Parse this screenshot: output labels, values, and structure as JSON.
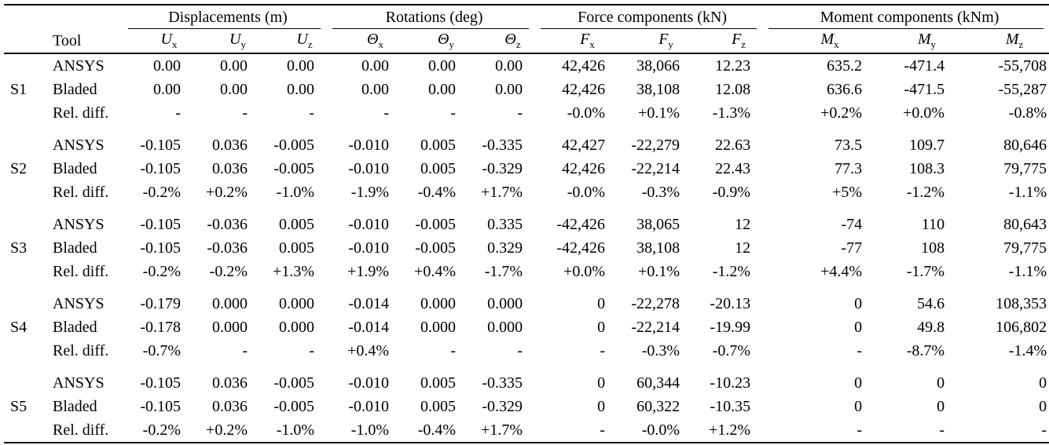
{
  "colors": {
    "background": "#ffffff",
    "text": "#000000",
    "rule": "#000000"
  },
  "table": {
    "corner_tool_label": "Tool",
    "groups": [
      {
        "label": "Displacements (m)",
        "cols": [
          {
            "sym": "U",
            "sub": "x"
          },
          {
            "sym": "U",
            "sub": "y"
          },
          {
            "sym": "U",
            "sub": "z"
          }
        ]
      },
      {
        "label": "Rotations (deg)",
        "cols": [
          {
            "sym": "Θ",
            "sub": "x"
          },
          {
            "sym": "Θ",
            "sub": "y"
          },
          {
            "sym": "Θ",
            "sub": "z"
          }
        ]
      },
      {
        "label": "Force components (kN)",
        "cols": [
          {
            "sym": "F",
            "sub": "x"
          },
          {
            "sym": "F",
            "sub": "y"
          },
          {
            "sym": "F",
            "sub": "z"
          }
        ]
      },
      {
        "label": "Moment components (kNm)",
        "cols": [
          {
            "sym": "M",
            "sub": "x"
          },
          {
            "sym": "M",
            "sub": "y"
          },
          {
            "sym": "M",
            "sub": "z"
          }
        ]
      }
    ],
    "sections": [
      {
        "id": "S1",
        "rows": [
          {
            "tool": "ANSYS",
            "values": [
              "0.00",
              "0.00",
              "0.00",
              "0.00",
              "0.00",
              "0.00",
              "42,426",
              "38,066",
              "12.23",
              "635.2",
              "-471.4",
              "-55,708"
            ]
          },
          {
            "tool": "Bladed",
            "values": [
              "0.00",
              "0.00",
              "0.00",
              "0.00",
              "0.00",
              "0.00",
              "42,426",
              "38,108",
              "12.08",
              "636.6",
              "-471.5",
              "-55,287"
            ]
          },
          {
            "tool": "Rel. diff.",
            "values": [
              "-",
              "-",
              "-",
              "-",
              "-",
              "-",
              "-0.0%",
              "+0.1%",
              "-1.3%",
              "+0.2%",
              "+0.0%",
              "-0.8%"
            ]
          }
        ]
      },
      {
        "id": "S2",
        "rows": [
          {
            "tool": "ANSYS",
            "values": [
              "-0.105",
              "0.036",
              "-0.005",
              "-0.010",
              "0.005",
              "-0.335",
              "42,427",
              "-22,279",
              "22.63",
              "73.5",
              "109.7",
              "80,646"
            ]
          },
          {
            "tool": "Bladed",
            "values": [
              "-0.105",
              "0.036",
              "-0.005",
              "-0.010",
              "0.005",
              "-0.329",
              "42,426",
              "-22,214",
              "22.43",
              "77.3",
              "108.3",
              "79,775"
            ]
          },
          {
            "tool": "Rel. diff.",
            "values": [
              "-0.2%",
              "+0.2%",
              "-1.0%",
              "-1.9%",
              "-0.4%",
              "+1.7%",
              "-0.0%",
              "-0.3%",
              "-0.9%",
              "+5%",
              "-1.2%",
              "-1.1%"
            ]
          }
        ]
      },
      {
        "id": "S3",
        "rows": [
          {
            "tool": "ANSYS",
            "values": [
              "-0.105",
              "-0.036",
              "0.005",
              "-0.010",
              "-0.005",
              "0.335",
              "-42,426",
              "38,065",
              "12",
              "-74",
              "110",
              "80,643"
            ]
          },
          {
            "tool": "Bladed",
            "values": [
              "-0.105",
              "-0.036",
              "0.005",
              "-0.010",
              "-0.005",
              "0.329",
              "-42,426",
              "38,108",
              "12",
              "-77",
              "108",
              "79,775"
            ]
          },
          {
            "tool": "Rel. diff.",
            "values": [
              "-0.2%",
              "-0.2%",
              "+1.3%",
              "+1.9%",
              "+0.4%",
              "-1.7%",
              "+0.0%",
              "+0.1%",
              "-1.2%",
              "+4.4%",
              "-1.7%",
              "-1.1%"
            ]
          }
        ]
      },
      {
        "id": "S4",
        "rows": [
          {
            "tool": "ANSYS",
            "values": [
              "-0.179",
              "0.000",
              "0.000",
              "-0.014",
              "0.000",
              "0.000",
              "0",
              "-22,278",
              "-20.13",
              "0",
              "54.6",
              "108,353"
            ]
          },
          {
            "tool": "Bladed",
            "values": [
              "-0.178",
              "0.000",
              "0.000",
              "-0.014",
              "0.000",
              "0.000",
              "0",
              "-22,214",
              "-19.99",
              "0",
              "49.8",
              "106,802"
            ]
          },
          {
            "tool": "Rel. diff.",
            "values": [
              "-0.7%",
              "-",
              "-",
              "+0.4%",
              "-",
              "-",
              "-",
              "-0.3%",
              "-0.7%",
              "-",
              "-8.7%",
              "-1.4%"
            ]
          }
        ]
      },
      {
        "id": "S5",
        "rows": [
          {
            "tool": "ANSYS",
            "values": [
              "-0.105",
              "0.036",
              "-0.005",
              "-0.010",
              "0.005",
              "-0.335",
              "0",
              "60,344",
              "-10.23",
              "0",
              "0",
              "0"
            ]
          },
          {
            "tool": "Bladed",
            "values": [
              "-0.105",
              "0.036",
              "-0.005",
              "-0.010",
              "0.005",
              "-0.329",
              "0",
              "60,322",
              "-10.35",
              "0",
              "0",
              "0"
            ]
          },
          {
            "tool": "Rel. diff.",
            "values": [
              "-0.2%",
              "+0.2%",
              "-1.0%",
              "-1.0%",
              "-0.4%",
              "+1.7%",
              "-",
              "-0.0%",
              "+1.2%",
              "-",
              "-",
              "-"
            ]
          }
        ]
      }
    ]
  }
}
